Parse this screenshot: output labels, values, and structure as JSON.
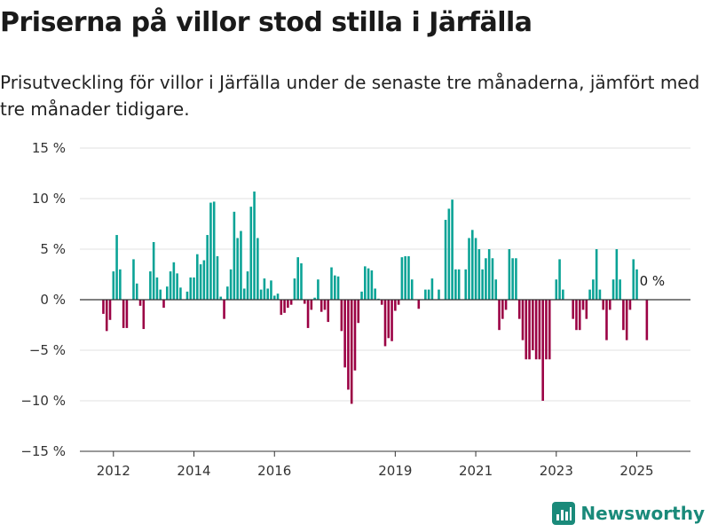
{
  "header": {
    "title": "Priserna på villor stod stilla i Järfälla",
    "subtitle": "Prisutveckling för villor i Järfälla under de senaste tre månaderna, jämfört med tre månader tidigare."
  },
  "brand": {
    "name": "Newsworthy",
    "icon": "newsworthy-logo-icon"
  },
  "colors": {
    "positive": "#0aa396",
    "negative": "#9b0044",
    "grid": "#e0e0e0",
    "axis": "#333333"
  },
  "chart_data": {
    "type": "bar",
    "title": "Priserna på villor stod stilla i Järfälla",
    "subtitle": "Prisutveckling för villor i Järfälla under de senaste tre månaderna, jämfört med tre månader tidigare.",
    "xlabel": "",
    "ylabel": "",
    "ylim": [
      -15,
      15
    ],
    "yticks": [
      15,
      10,
      5,
      0,
      -5,
      -10,
      -15
    ],
    "ytick_labels": [
      "15 %",
      "10 %",
      "5 %",
      "0 %",
      "−5 %",
      "−10 %",
      "−15 %"
    ],
    "xlim": [
      "2011-03",
      "2026-05"
    ],
    "xtick_labels": [
      "2012",
      "2014",
      "2016",
      "2019",
      "2021",
      "2023",
      "2025"
    ],
    "xtick_positions": [
      "2012-01",
      "2014-01",
      "2016-01",
      "2019-01",
      "2021-01",
      "2023-01",
      "2025-01"
    ],
    "grid": true,
    "legend": "none",
    "end_label": "0 %",
    "start_month": "2011-10",
    "values": [
      -1.4,
      -3.1,
      -2.0,
      2.8,
      6.4,
      3.0,
      -2.8,
      -2.8,
      0.0,
      4.0,
      1.6,
      -0.6,
      -2.9,
      0.0,
      2.8,
      5.7,
      2.2,
      1.0,
      -0.8,
      1.3,
      2.8,
      3.7,
      2.6,
      1.2,
      0.0,
      0.8,
      2.2,
      2.2,
      4.5,
      3.5,
      3.9,
      6.4,
      9.6,
      9.7,
      4.3,
      0.3,
      -1.9,
      1.3,
      3.0,
      8.7,
      6.1,
      6.8,
      1.1,
      2.8,
      9.2,
      10.7,
      6.1,
      1.0,
      2.1,
      1.1,
      1.9,
      0.4,
      0.6,
      -1.5,
      -1.3,
      -0.8,
      -0.5,
      2.1,
      4.2,
      3.6,
      -0.4,
      -2.8,
      -1.0,
      0.2,
      2.0,
      -1.2,
      -1.0,
      -2.2,
      3.2,
      2.4,
      2.3,
      -3.1,
      -6.7,
      -8.9,
      -10.3,
      -7.0,
      -2.3,
      0.8,
      3.3,
      3.1,
      2.9,
      1.1,
      0.1,
      -0.5,
      -4.6,
      -3.8,
      -4.1,
      -1.1,
      -0.5,
      4.2,
      4.3,
      4.3,
      2.0,
      0.0,
      -0.9,
      0.0,
      1.0,
      1.0,
      2.1,
      0.0,
      1.0,
      0.0,
      7.9,
      9.0,
      9.9,
      3.0,
      3.0,
      0.0,
      3.0,
      6.1,
      6.9,
      6.1,
      5.0,
      3.0,
      4.1,
      5.0,
      4.1,
      2.0,
      -3.0,
      -1.9,
      -1.0,
      5.0,
      4.1,
      4.1,
      -1.9,
      -4.0,
      -5.9,
      -5.9,
      -5.0,
      -5.9,
      -5.9,
      -10.0,
      -5.9,
      -5.9,
      0.0,
      2.0,
      4.0,
      1.0,
      0.0,
      0.0,
      -1.9,
      -3.0,
      -3.0,
      -1.0,
      -1.9,
      1.0,
      2.0,
      5.0,
      1.0,
      -1.0,
      -4.0,
      -1.0,
      2.0,
      5.0,
      2.0,
      -3.0,
      -4.0,
      -1.0,
      4.0,
      3.0,
      0.0,
      0.0,
      -4.0,
      0.0
    ]
  }
}
